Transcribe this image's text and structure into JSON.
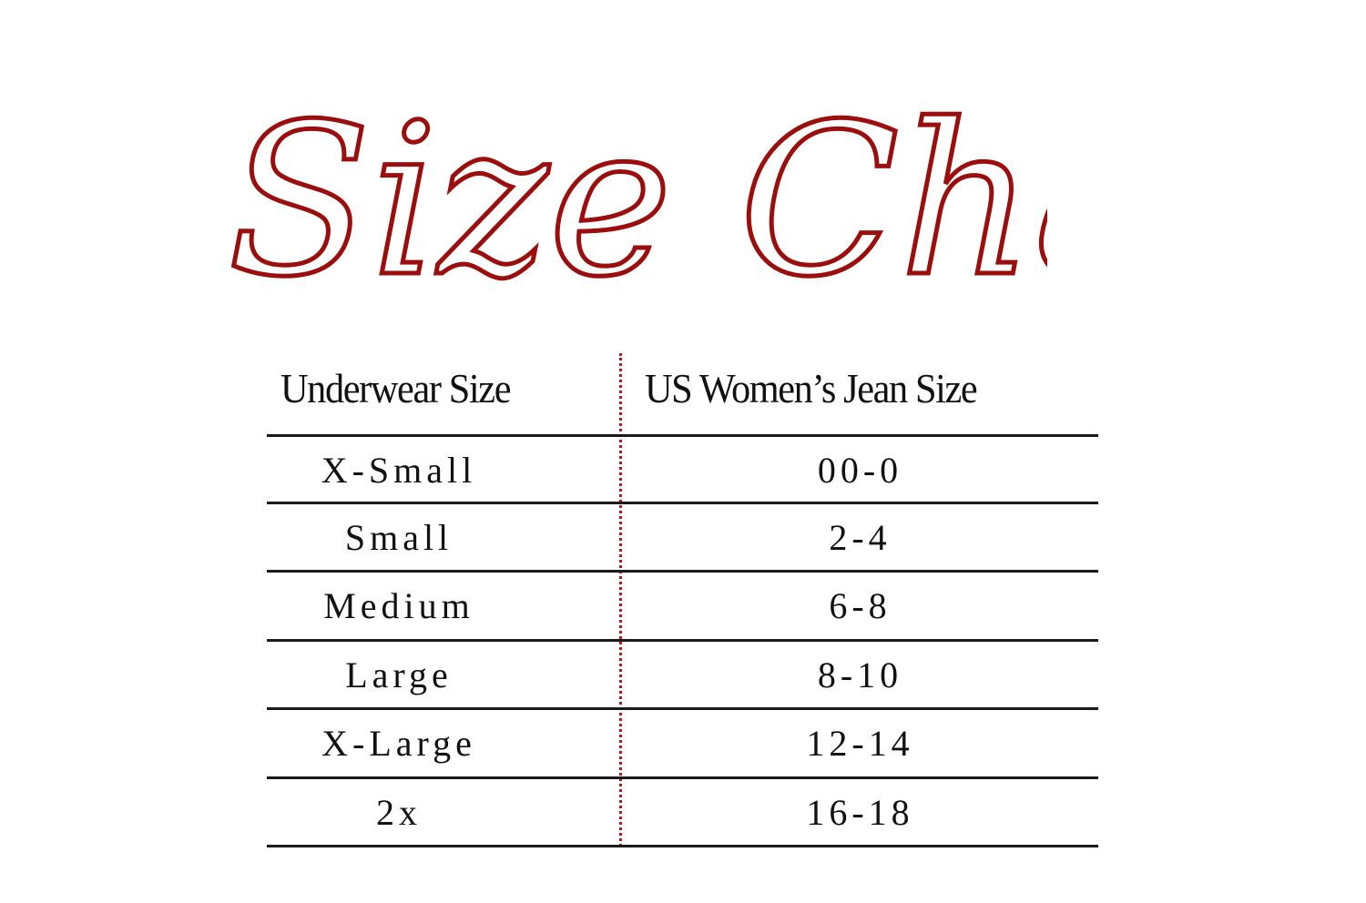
{
  "title": "Size Chart",
  "colors": {
    "accent": "#9b0e0e",
    "rule": "#1a1a1a"
  },
  "headers": [
    "Underwear Size",
    "US Women’s Jean Size"
  ],
  "rows": [
    {
      "underwear": "X-Small",
      "jean": "00-0"
    },
    {
      "underwear": "Small",
      "jean": "2-4"
    },
    {
      "underwear": "Medium",
      "jean": "6-8"
    },
    {
      "underwear": "Large",
      "jean": "8-10"
    },
    {
      "underwear": "X-Large",
      "jean": "12-14"
    },
    {
      "underwear": "2x",
      "jean": "16-18"
    }
  ]
}
